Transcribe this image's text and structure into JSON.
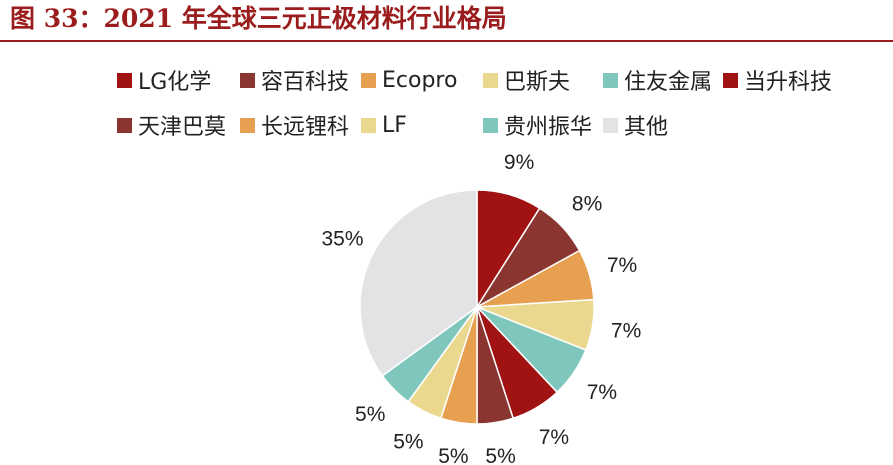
{
  "page": {
    "title": "图 33：2021 年全球三元正极材料行业格局"
  },
  "chart_data": {
    "type": "pie",
    "title": "",
    "start_angle_deg": 0,
    "direction": "clockwise",
    "slices": [
      {
        "name": "LG化学",
        "value": 9,
        "label": "9%",
        "color": "#a11212"
      },
      {
        "name": "容百科技",
        "value": 8,
        "label": "8%",
        "color": "#8a3530"
      },
      {
        "name": "Ecopro",
        "value": 7,
        "label": "7%",
        "color": "#e6a050"
      },
      {
        "name": "巴斯夫",
        "value": 7,
        "label": "7%",
        "color": "#ead88e"
      },
      {
        "name": "住友金属",
        "value": 7,
        "label": "7%",
        "color": "#7fc6bc"
      },
      {
        "name": "当升科技",
        "value": 7,
        "label": "7%",
        "color": "#a11212"
      },
      {
        "name": "天津巴莫",
        "value": 5,
        "label": "5%",
        "color": "#8a3530"
      },
      {
        "name": "长远锂科",
        "value": 5,
        "label": "5%",
        "color": "#e6a050"
      },
      {
        "name": "LF",
        "value": 5,
        "label": "5%",
        "color": "#ead88e"
      },
      {
        "name": "贵州振华",
        "value": 5,
        "label": "5%",
        "color": "#7fc6bc"
      },
      {
        "name": "其他",
        "value": 35,
        "label": "35%",
        "color": "#e3e3e6"
      }
    ],
    "legend": {
      "placement": "top"
    }
  }
}
